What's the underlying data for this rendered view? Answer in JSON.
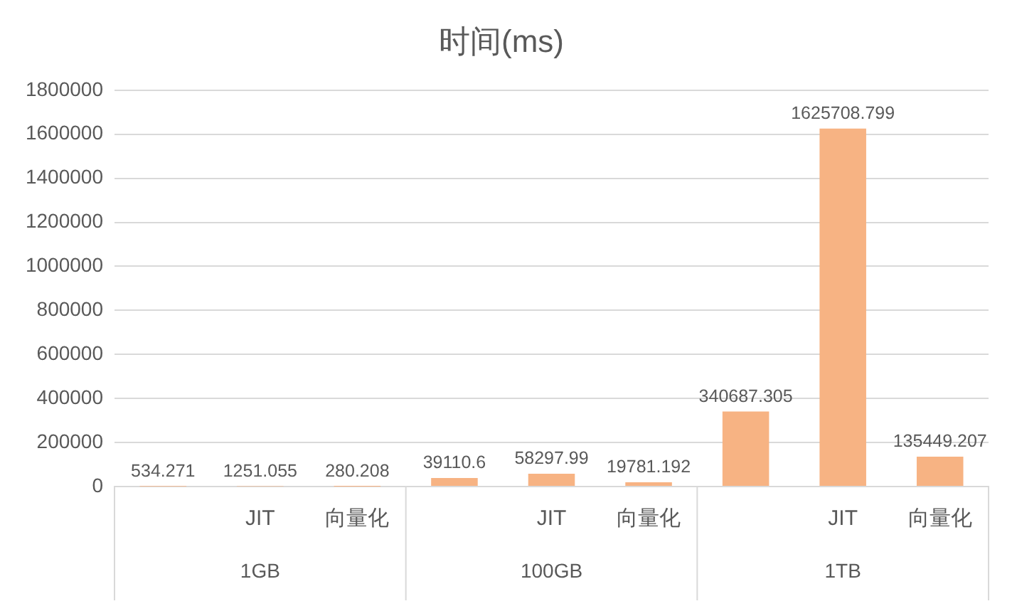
{
  "chart_data": {
    "type": "bar",
    "title": "时间(ms)",
    "categories": [
      null,
      "JIT",
      "向量化",
      null,
      "JIT",
      "向量化",
      null,
      "JIT",
      "向量化"
    ],
    "values": [
      534.271,
      1251.055,
      280.208,
      39110.6,
      58297.99,
      19781.192,
      340687.305,
      1625708.799,
      135449.207
    ],
    "color": "#f7b383",
    "ylim": [
      0,
      1800000
    ],
    "yticks": [
      0,
      200000,
      400000,
      600000,
      800000,
      1000000,
      1200000,
      1400000,
      1600000,
      1800000
    ],
    "grid": "y",
    "legend": false,
    "data_labels": true,
    "annotations": [
      "1GB",
      "100GB",
      "1TB"
    ]
  }
}
